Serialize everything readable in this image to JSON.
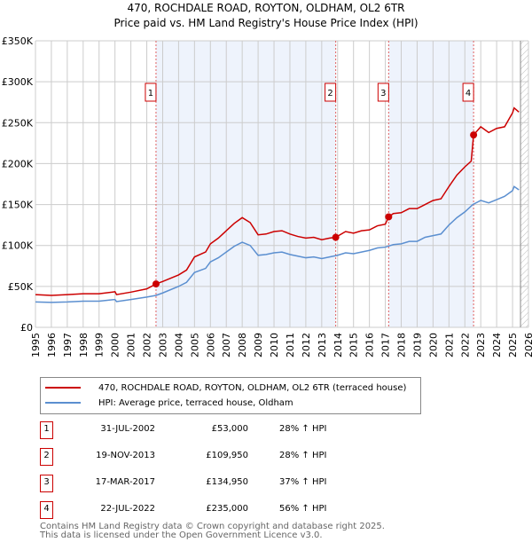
{
  "chart_data": {
    "type": "line",
    "title": "470, ROCHDALE ROAD, ROYTON, OLDHAM, OL2 6TR",
    "subtitle": "Price paid vs. HM Land Registry's House Price Index (HPI)",
    "xlim": [
      1995,
      2026
    ],
    "ylim": [
      0,
      350000
    ],
    "x_ticks": [
      "1995",
      "1996",
      "1997",
      "1998",
      "1999",
      "2000",
      "2001",
      "2002",
      "2003",
      "2004",
      "2005",
      "2006",
      "2007",
      "2008",
      "2009",
      "2010",
      "2011",
      "2012",
      "2013",
      "2014",
      "2015",
      "2016",
      "2017",
      "2018",
      "2019",
      "2020",
      "2021",
      "2022",
      "2023",
      "2024",
      "2025",
      "2026"
    ],
    "y_ticks": [
      {
        "v": 0,
        "label": "£0"
      },
      {
        "v": 50000,
        "label": "£50K"
      },
      {
        "v": 100000,
        "label": "£100K"
      },
      {
        "v": 150000,
        "label": "£150K"
      },
      {
        "v": 200000,
        "label": "£200K"
      },
      {
        "v": 250000,
        "label": "£250K"
      },
      {
        "v": 300000,
        "label": "£300K"
      },
      {
        "v": 350000,
        "label": "£350K"
      }
    ],
    "grid": true,
    "shaded_ranges": [
      [
        2002.58,
        2013.88
      ],
      [
        2017.21,
        2022.55
      ]
    ],
    "forecast_hatch_from": 2025.5,
    "series": [
      {
        "name": "470, ROCHDALE ROAD, ROYTON, OLDHAM, OL2 6TR (terraced house)",
        "color": "#cc0000",
        "x": [
          1995,
          1996,
          1997,
          1998,
          1999,
          2000,
          2000.1,
          2001,
          2002,
          2002.58,
          2003,
          2004,
          2004.5,
          2005,
          2005.7,
          2006,
          2006.5,
          2007,
          2007.5,
          2008,
          2008.5,
          2009,
          2009.5,
          2010,
          2010.5,
          2011,
          2011.5,
          2012,
          2012.5,
          2013,
          2013.5,
          2013.88,
          2014.5,
          2015,
          2015.5,
          2016,
          2016.5,
          2017,
          2017.21,
          2017.5,
          2018,
          2018.5,
          2019,
          2019.5,
          2020,
          2020.5,
          2021,
          2021.5,
          2022,
          2022.4,
          2022.55,
          2023,
          2023.5,
          2024,
          2024.5,
          2025,
          2025.1,
          2025.4
        ],
        "y": [
          40000,
          39000,
          40000,
          41000,
          41000,
          43500,
          40000,
          43000,
          47000,
          53000,
          56000,
          64000,
          70000,
          86000,
          92000,
          102000,
          109000,
          118000,
          127000,
          134000,
          128000,
          113000,
          114000,
          117000,
          118000,
          114000,
          111000,
          109000,
          110000,
          107000,
          109000,
          109950,
          117000,
          115000,
          118000,
          119000,
          124000,
          126000,
          134950,
          139000,
          140000,
          145000,
          145000,
          150000,
          155000,
          157000,
          172000,
          186000,
          196000,
          203000,
          235000,
          245000,
          238000,
          243000,
          245000,
          262000,
          268000,
          263000
        ]
      },
      {
        "name": "HPI: Average price, terraced house, Oldham",
        "color": "#5b8fd0",
        "x": [
          1995,
          1996,
          1997,
          1998,
          1999,
          2000,
          2000.1,
          2001,
          2002,
          2002.58,
          2003,
          2004,
          2004.5,
          2005,
          2005.7,
          2006,
          2006.5,
          2007,
          2007.5,
          2008,
          2008.5,
          2009,
          2009.5,
          2010,
          2010.5,
          2011,
          2011.5,
          2012,
          2012.5,
          2013,
          2013.5,
          2014,
          2014.5,
          2015,
          2015.5,
          2016,
          2016.5,
          2017,
          2017.5,
          2018,
          2018.5,
          2019,
          2019.5,
          2020,
          2020.5,
          2021,
          2021.5,
          2022,
          2022.5,
          2023,
          2023.5,
          2024,
          2024.5,
          2025,
          2025.1,
          2025.4
        ],
        "y": [
          31000,
          30500,
          31000,
          32000,
          32000,
          34000,
          31500,
          34000,
          37000,
          39000,
          42000,
          50000,
          55000,
          67000,
          72000,
          80000,
          85000,
          92000,
          99000,
          104000,
          100000,
          88000,
          89000,
          91000,
          92000,
          89000,
          87000,
          85000,
          86000,
          84000,
          86000,
          88000,
          91000,
          90000,
          92000,
          94000,
          97000,
          98000,
          101000,
          102000,
          105000,
          105000,
          110000,
          112000,
          114000,
          125000,
          134000,
          141000,
          150000,
          155000,
          152000,
          156000,
          160000,
          167000,
          172000,
          168000
        ]
      }
    ],
    "sales": [
      {
        "num": "1",
        "x": 2002.58,
        "y": 53000,
        "date": "31-JUL-2002",
        "price": "£53,000",
        "hpi": "28% ↑ HPI"
      },
      {
        "num": "2",
        "x": 2013.88,
        "y": 109950,
        "date": "19-NOV-2013",
        "price": "£109,950",
        "hpi": "28% ↑ HPI"
      },
      {
        "num": "3",
        "x": 2017.21,
        "y": 134950,
        "date": "17-MAR-2017",
        "price": "£134,950",
        "hpi": "37% ↑ HPI"
      },
      {
        "num": "4",
        "x": 2022.55,
        "y": 235000,
        "date": "22-JUL-2022",
        "price": "£235,000",
        "hpi": "56% ↑ HPI"
      }
    ]
  },
  "footer": {
    "line1": "Contains HM Land Registry data © Crown copyright and database right 2025.",
    "line2": "This data is licensed under the Open Government Licence v3.0."
  }
}
